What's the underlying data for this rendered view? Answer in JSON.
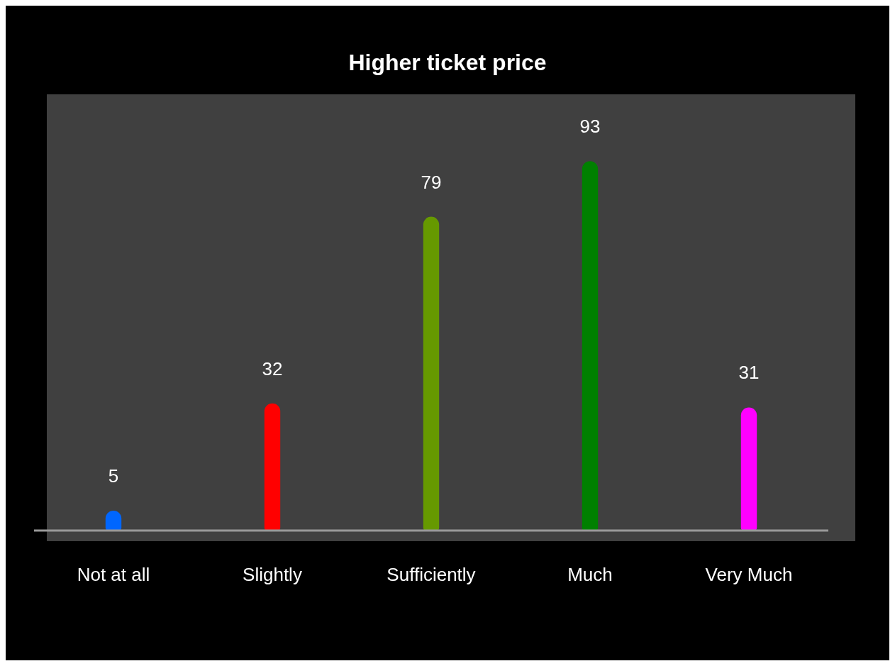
{
  "chart_data": {
    "type": "bar",
    "title": "Higher ticket price",
    "categories": [
      "Not at all",
      "Slightly",
      "Sufficiently",
      "Much",
      "Very Much"
    ],
    "values": [
      5,
      32,
      79,
      93,
      31
    ],
    "colors": [
      "#0066ff",
      "#ff0000",
      "#669900",
      "#008000",
      "#ff00ff"
    ],
    "data_labels": true,
    "grid": false,
    "legend": false
  }
}
